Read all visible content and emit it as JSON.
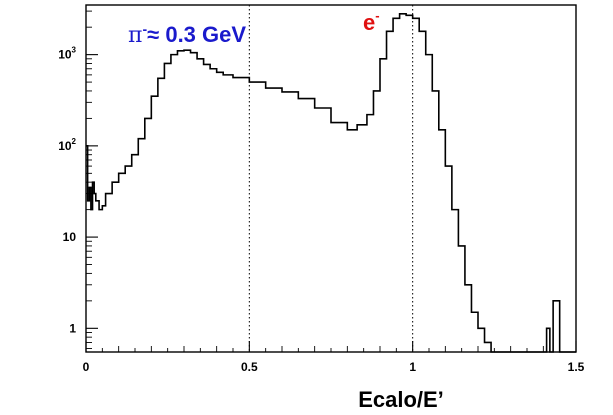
{
  "chart_data": {
    "type": "line",
    "xlabel": "Ecalo/E’",
    "ylabel": "",
    "xlim": [
      0,
      1.5
    ],
    "ylim": [
      0.55,
      3500
    ],
    "y_scale": "log",
    "step_histogram": true,
    "vertical_dotted_lines": [
      0.5,
      1.0
    ],
    "x_ticks": [
      {
        "value": 0,
        "label": "0"
      },
      {
        "value": 0.5,
        "label": "0.5"
      },
      {
        "value": 1.0,
        "label": "1"
      },
      {
        "value": 1.5,
        "label": "1.5"
      }
    ],
    "y_ticks": [
      {
        "value": 1,
        "base": "1",
        "exp": ""
      },
      {
        "value": 10,
        "base": "10",
        "exp": ""
      },
      {
        "value": 100,
        "base": "10",
        "exp": "2"
      },
      {
        "value": 1000,
        "base": "10",
        "exp": "3"
      }
    ],
    "annotations": [
      {
        "id": "pion",
        "base": "π",
        "sup": "-",
        "rest": "≈ 0.3 GeV",
        "color": "#1a1acc"
      },
      {
        "id": "electron",
        "base": "e",
        "sup": "-",
        "rest": "",
        "color": "#e01010"
      }
    ],
    "series": [
      {
        "color": "#000000",
        "x": [
          0,
          0.005,
          0.01,
          0.015,
          0.02,
          0.025,
          0.03,
          0.04,
          0.05,
          0.06,
          0.08,
          0.1,
          0.12,
          0.14,
          0.16,
          0.18,
          0.2,
          0.22,
          0.24,
          0.26,
          0.28,
          0.3,
          0.32,
          0.34,
          0.36,
          0.38,
          0.4,
          0.42,
          0.45,
          0.5,
          0.55,
          0.6,
          0.65,
          0.7,
          0.75,
          0.8,
          0.83,
          0.86,
          0.88,
          0.9,
          0.92,
          0.94,
          0.96,
          0.98,
          1.0,
          1.02,
          1.04,
          1.06,
          1.08,
          1.1,
          1.12,
          1.14,
          1.16,
          1.18,
          1.2,
          1.22,
          1.24,
          1.26,
          1.28,
          1.3,
          1.32,
          1.35,
          1.38,
          1.4,
          1.41,
          1.42,
          1.43,
          1.45,
          1.5
        ],
        "y": [
          100,
          25,
          35,
          20,
          40,
          30,
          25,
          20,
          22,
          30,
          40,
          50,
          60,
          80,
          120,
          200,
          350,
          550,
          800,
          1000,
          1100,
          1120,
          1050,
          900,
          780,
          700,
          640,
          600,
          560,
          500,
          430,
          390,
          330,
          260,
          180,
          150,
          170,
          220,
          400,
          900,
          1800,
          2500,
          2800,
          2700,
          2500,
          1800,
          1000,
          400,
          150,
          60,
          20,
          8,
          3,
          1.5,
          1.0,
          0.7,
          0.55,
          0.55,
          0.55,
          0.55,
          0.55,
          0.55,
          0.55,
          0.55,
          1.0,
          0.55,
          2.0,
          0.55,
          0.55
        ]
      }
    ]
  }
}
